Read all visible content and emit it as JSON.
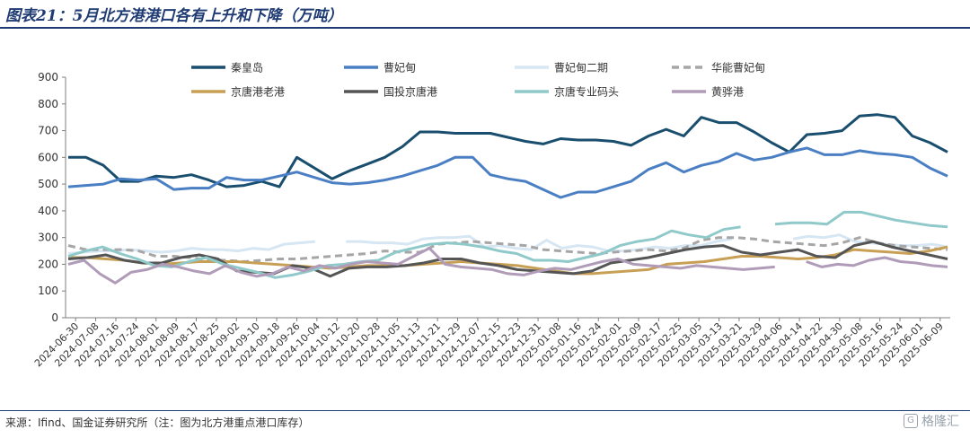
{
  "title": "图表21：5月北方港港口各有上升和下降（万吨）",
  "source": "来源：Ifind、国金证券研究所（注：图为北方港重点港口库存）",
  "watermark": "格隆汇",
  "chart_data": {
    "type": "line",
    "ylim": [
      0,
      900
    ],
    "yticks": [
      0,
      100,
      200,
      300,
      400,
      500,
      600,
      700,
      800,
      900
    ],
    "grid": false,
    "legend_position": "top",
    "x_tick_labels": [
      "2024-06-30",
      "2024-07-08",
      "2024-07-16",
      "2024-07-24",
      "2024-08-01",
      "2024-08-09",
      "2024-08-17",
      "2024-08-25",
      "2024-09-02",
      "2024-09-10",
      "2024-09-18",
      "2024-09-26",
      "2024-10-04",
      "2024-10-12",
      "2024-10-20",
      "2024-10-28",
      "2024-11-05",
      "2024-11-13",
      "2024-11-21",
      "2024-11-29",
      "2024-12-07",
      "2024-12-15",
      "2024-12-23",
      "2024-12-31",
      "2025-01-08",
      "2025-01-16",
      "2025-01-24",
      "2025-02-01",
      "2025-02-09",
      "2025-02-17",
      "2025-02-25",
      "2025-03-05",
      "2025-03-13",
      "2025-03-21",
      "2025-03-29",
      "2025-04-06",
      "2025-04-14",
      "2025-04-22",
      "2025-04-30",
      "2025-05-08",
      "2025-05-16",
      "2025-05-24",
      "2025-06-01",
      "2025-06-09"
    ],
    "x_points_per_tick": 2,
    "series": [
      {
        "name": "秦皇岛",
        "color": "#1a4e6e",
        "width": 3,
        "dash": "",
        "values": [
          600,
          600,
          570,
          510,
          510,
          530,
          525,
          535,
          515,
          490,
          495,
          510,
          490,
          600,
          560,
          520,
          550,
          575,
          600,
          640,
          695,
          695,
          690,
          690,
          690,
          675,
          660,
          650,
          670,
          665,
          665,
          660,
          645,
          680,
          705,
          680,
          750,
          730,
          730,
          695,
          655,
          620,
          685,
          690,
          700,
          755,
          760,
          750,
          680,
          655,
          620
        ]
      },
      {
        "name": "曹妃甸",
        "color": "#4a7fc4",
        "width": 3,
        "dash": "",
        "values": [
          490,
          495,
          500,
          520,
          515,
          520,
          480,
          485,
          485,
          525,
          515,
          515,
          530,
          545,
          525,
          505,
          500,
          505,
          515,
          530,
          550,
          570,
          600,
          600,
          535,
          520,
          510,
          480,
          450,
          470,
          470,
          490,
          510,
          555,
          580,
          545,
          570,
          585,
          615,
          590,
          600,
          620,
          635,
          610,
          610,
          625,
          615,
          610,
          600,
          560,
          530
        ]
      },
      {
        "name": "曹妃甸二期",
        "color": "#d6e6f2",
        "width": 3,
        "dash": "",
        "values": [
          240,
          245,
          250,
          250,
          255,
          250,
          245,
          250,
          260,
          255,
          255,
          250,
          260,
          255,
          275,
          280,
          285,
          null,
          285,
          285,
          280,
          280,
          275,
          295,
          300,
          300,
          305,
          265,
          270,
          260,
          255,
          290,
          260,
          270,
          265,
          250,
          250,
          255,
          265,
          260,
          270,
          270,
          285,
          295,
          null,
          null,
          null,
          295,
          305,
          300,
          310,
          285,
          280,
          275,
          270,
          270,
          275,
          265
        ]
      },
      {
        "name": "华能曹妃甸",
        "color": "#a6a6a6",
        "width": 3,
        "dash": "8 5",
        "values": [
          270,
          255,
          255,
          255,
          250,
          230,
          230,
          225,
          215,
          215,
          210,
          215,
          220,
          220,
          225,
          230,
          235,
          240,
          250,
          245,
          245,
          275,
          280,
          285,
          280,
          275,
          270,
          255,
          250,
          245,
          240,
          245,
          250,
          255,
          250,
          260,
          290,
          300,
          300,
          295,
          285,
          280,
          275,
          270,
          280,
          300,
          280,
          270,
          265,
          260,
          255
        ]
      },
      {
        "name": "京唐港老港",
        "color": "#c8a055",
        "width": 3,
        "dash": "",
        "values": [
          225,
          225,
          220,
          215,
          205,
          200,
          205,
          210,
          210,
          210,
          205,
          200,
          195,
          190,
          185,
          190,
          195,
          195,
          195,
          200,
          205,
          210,
          205,
          200,
          195,
          185,
          175,
          165,
          165,
          170,
          175,
          180,
          200,
          205,
          210,
          220,
          230,
          230,
          225,
          220,
          225,
          235,
          255,
          250,
          245,
          240,
          250,
          265
        ]
      },
      {
        "name": "国投京唐港",
        "color": "#555555",
        "width": 3,
        "dash": "",
        "values": [
          220,
          225,
          235,
          215,
          205,
          205,
          225,
          235,
          220,
          175,
          170,
          165,
          195,
          185,
          155,
          185,
          190,
          190,
          195,
          205,
          220,
          220,
          205,
          195,
          180,
          175,
          170,
          165,
          175,
          205,
          215,
          225,
          240,
          255,
          265,
          270,
          245,
          235,
          245,
          255,
          230,
          225,
          270,
          285,
          265,
          250,
          235,
          220
        ]
      },
      {
        "name": "京唐专业码头",
        "color": "#8fc9c9",
        "width": 3,
        "dash": "",
        "values": [
          230,
          250,
          265,
          240,
          220,
          195,
          190,
          210,
          225,
          200,
          185,
          170,
          150,
          160,
          175,
          195,
          200,
          210,
          215,
          245,
          260,
          275,
          280,
          275,
          265,
          250,
          240,
          215,
          215,
          210,
          225,
          240,
          270,
          285,
          295,
          325,
          310,
          300,
          330,
          340,
          null,
          350,
          355,
          355,
          350,
          395,
          395,
          380,
          365,
          355,
          345,
          340
        ]
      },
      {
        "name": "黄骅港",
        "color": "#b09cb8",
        "width": 3,
        "dash": "",
        "values": [
          200,
          215,
          165,
          130,
          170,
          180,
          200,
          190,
          175,
          165,
          195,
          170,
          155,
          165,
          190,
          175,
          195,
          185,
          200,
          210,
          205,
          200,
          230,
          260,
          200,
          190,
          185,
          180,
          165,
          160,
          175,
          185,
          180,
          195,
          210,
          220,
          200,
          195,
          190,
          185,
          195,
          190,
          185,
          180,
          185,
          190,
          null,
          210,
          190,
          200,
          195,
          215,
          225,
          210,
          205,
          195,
          190
        ]
      }
    ]
  }
}
